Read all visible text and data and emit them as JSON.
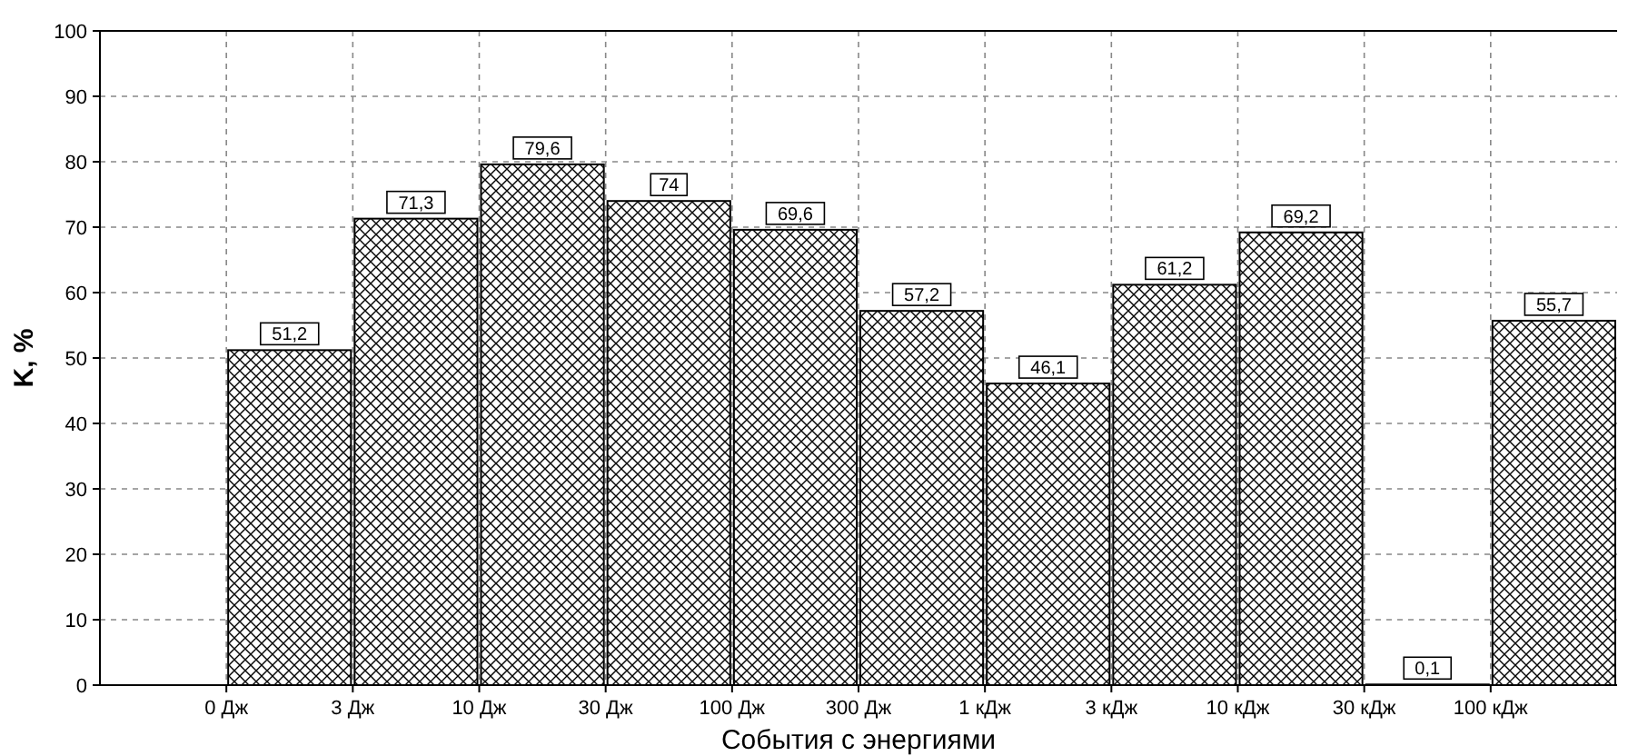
{
  "chart_data": {
    "type": "bar",
    "xlabel": "События с энергиями",
    "ylabel": "K, %",
    "categories": [
      null,
      null,
      null,
      null,
      null,
      null,
      null,
      null,
      null,
      null,
      null,
      null
    ],
    "values": [
      null,
      51.2,
      71.3,
      79.6,
      74,
      69.6,
      57.2,
      46.1,
      61.2,
      69.2,
      0.1,
      55.7
    ],
    "value_labels": [
      null,
      "51,2",
      "71,3",
      "79,6",
      "74",
      "69,6",
      "57,2",
      "46,1",
      "61,2",
      "69,2",
      "0,1",
      "55,7"
    ],
    "color": "#000000",
    "annotations": [
      "0 Дж",
      "3 Дж",
      "10 Дж",
      "30 Дж",
      "100 Дж",
      "300 Дж",
      "1 кДж",
      "3 кДж",
      "10 кДж",
      "30 кДж",
      "100 кДж"
    ],
    "ylim": [
      0,
      100
    ],
    "yticks": [
      0,
      10,
      20,
      30,
      40,
      50,
      60,
      70,
      80,
      90,
      100
    ],
    "grid": true
  }
}
